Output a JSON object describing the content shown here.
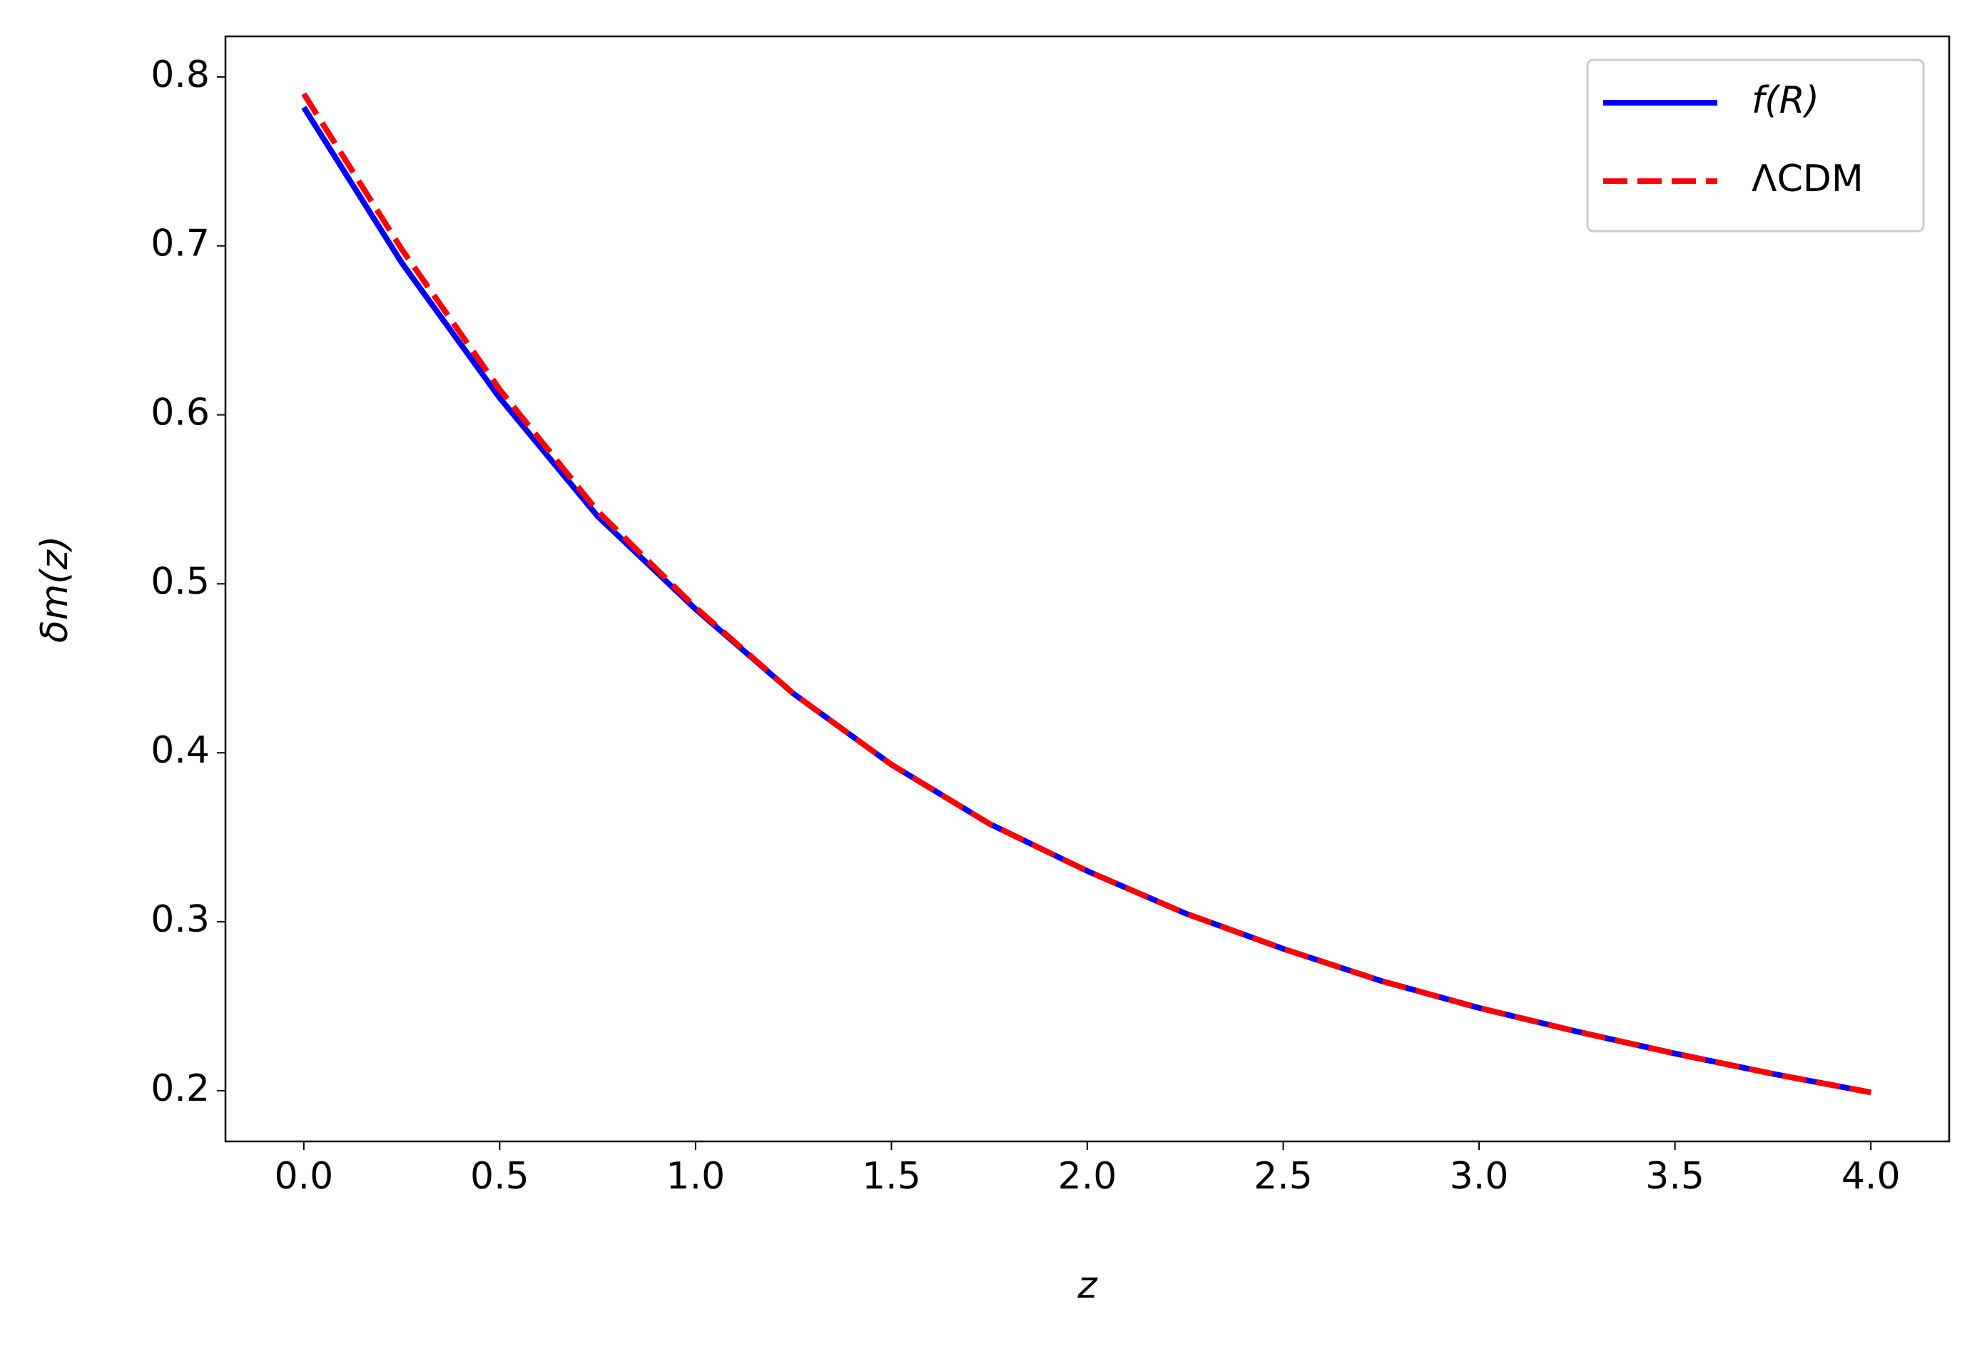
{
  "chart_data": {
    "type": "line",
    "x_label": "z",
    "y_label": "δm(z)",
    "x": [
      0,
      0.25,
      0.5,
      0.75,
      1.0,
      1.25,
      1.5,
      1.75,
      2.0,
      2.25,
      2.5,
      2.75,
      3.0,
      3.25,
      3.5,
      3.75,
      4.0
    ],
    "series": [
      {
        "name": "f(R)",
        "color": "#0000ff",
        "style": "solid",
        "values": [
          0.782,
          0.69,
          0.61,
          0.54,
          0.485,
          0.435,
          0.393,
          0.358,
          0.33,
          0.305,
          0.284,
          0.265,
          0.249,
          0.235,
          0.222,
          0.21,
          0.199
        ]
      },
      {
        "name": "ΛCDM",
        "color": "#ff0000",
        "style": "dashed",
        "values": [
          0.79,
          0.698,
          0.615,
          0.543,
          0.486,
          0.435,
          0.393,
          0.358,
          0.33,
          0.305,
          0.284,
          0.265,
          0.249,
          0.235,
          0.222,
          0.21,
          0.199
        ]
      }
    ],
    "xlim": [
      -0.2,
      4.2
    ],
    "ylim": [
      0.17,
      0.824
    ],
    "xticks": [
      {
        "value": 0,
        "label": "0.0"
      },
      0.5,
      {
        "value": 1,
        "label": "1.0"
      },
      1.5,
      {
        "value": 2,
        "label": "2.0"
      },
      2.5,
      {
        "value": 3,
        "label": "3.0"
      },
      3.5,
      {
        "value": 4,
        "label": "4.0"
      }
    ],
    "yticks": [
      0.2,
      0.3,
      0.4,
      0.5,
      0.6,
      0.7,
      0.8
    ],
    "legend": "upper right",
    "grid": false
  }
}
